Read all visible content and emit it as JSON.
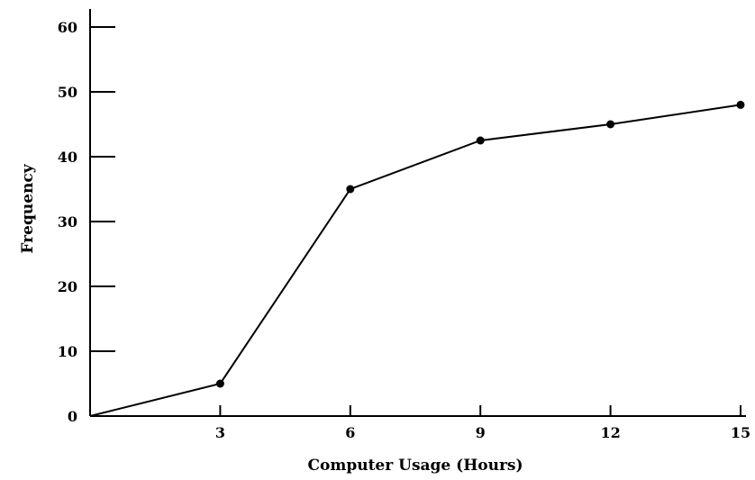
{
  "chart_data": {
    "type": "line",
    "title": "",
    "xlabel": "Computer Usage (Hours)",
    "ylabel": "Frequency",
    "x": [
      0,
      3,
      6,
      9,
      12,
      15
    ],
    "x_ticks": [
      3,
      6,
      9,
      12,
      15
    ],
    "y_ticks": [
      0,
      10,
      20,
      30,
      40,
      50,
      60
    ],
    "xlim": [
      0,
      15
    ],
    "ylim": [
      0,
      60
    ],
    "grid": false,
    "series": [
      {
        "values": [
          0,
          5,
          35,
          42.5,
          45,
          48
        ],
        "color": "#000000"
      }
    ]
  }
}
